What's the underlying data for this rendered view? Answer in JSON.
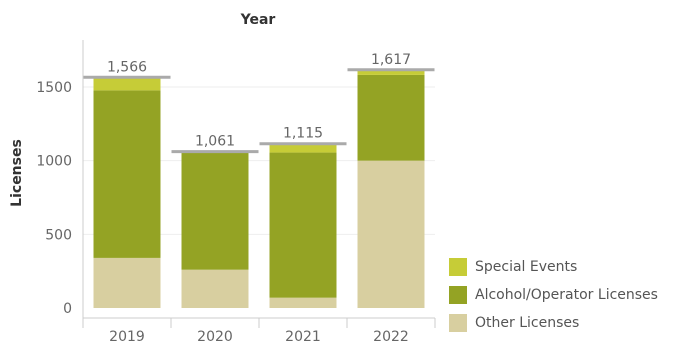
{
  "chart_data": {
    "type": "bar",
    "stacked": true,
    "title": "Year",
    "xlabel": "",
    "ylabel": "Licenses",
    "categories": [
      "2019",
      "2020",
      "2021",
      "2022"
    ],
    "ylim": [
      0,
      1700
    ],
    "yticks": [
      0,
      500,
      1000,
      1500
    ],
    "grid": true,
    "legend_position": "bottom-right",
    "series": [
      {
        "name": "Other Licenses",
        "color": "#d8cfa0",
        "values": [
          340,
          260,
          70,
          1000
        ]
      },
      {
        "name": "Alcohol/Operator Licenses",
        "color": "#94a324",
        "values": [
          1137,
          796,
          985,
          582
        ]
      },
      {
        "name": "Special Events",
        "color": "#c6cc37",
        "values": [
          89,
          5,
          60,
          35
        ]
      }
    ],
    "totals": [
      1566,
      1061,
      1115,
      1617
    ],
    "total_labels": [
      "1,566",
      "1,061",
      "1,115",
      "1,617"
    ],
    "legend_order": [
      "Special Events",
      "Alcohol/Operator Licenses",
      "Other Licenses"
    ]
  }
}
